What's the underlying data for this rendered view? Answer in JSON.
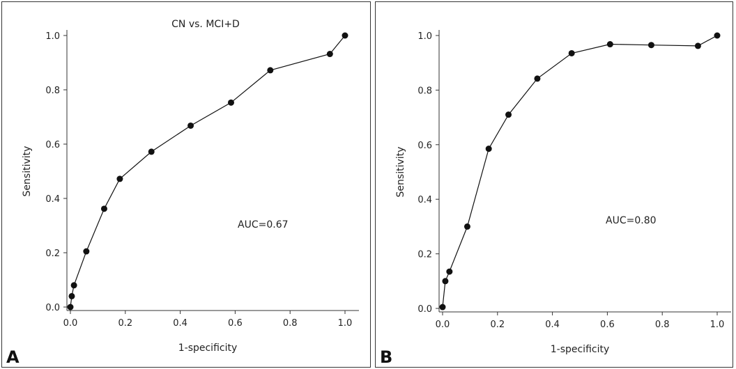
{
  "chart_data": [
    {
      "type": "line",
      "panel_label": "A",
      "title": "CN vs. MCI+D",
      "xlabel": "1-specificity",
      "ylabel": "Sensitivity",
      "annotation": "AUC=0.67",
      "xlim": [
        0,
        1.0
      ],
      "ylim": [
        0,
        1.0
      ],
      "xticks": [
        "0.0",
        "0.2",
        "0.4",
        "0.6",
        "0.8",
        "1.0"
      ],
      "yticks": [
        "0.0",
        "0.2",
        "0.4",
        "0.6",
        "0.8",
        "1.0"
      ],
      "grid": false,
      "series": [
        {
          "x": [
            0.0,
            0.005,
            0.013,
            0.058,
            0.123,
            0.18,
            0.295,
            0.438,
            0.585,
            0.728,
            0.945,
            1.0
          ],
          "y": [
            0.0,
            0.04,
            0.08,
            0.205,
            0.362,
            0.472,
            0.572,
            0.668,
            0.753,
            0.872,
            0.932,
            1.0
          ]
        }
      ]
    },
    {
      "type": "line",
      "panel_label": "B",
      "title": "",
      "xlabel": "1-specificity",
      "ylabel": "Sensitivity",
      "annotation": "AUC=0.80",
      "xlim": [
        0,
        1.0
      ],
      "ylim": [
        0,
        1.0
      ],
      "xticks": [
        "0.0",
        "0.2",
        "0.4",
        "0.6",
        "0.8",
        "1.0"
      ],
      "yticks": [
        "0.0",
        "0.2",
        "0.4",
        "0.6",
        "0.8",
        "1.0"
      ],
      "grid": false,
      "series": [
        {
          "x": [
            0.0,
            0.01,
            0.025,
            0.09,
            0.168,
            0.24,
            0.345,
            0.47,
            0.61,
            0.76,
            0.93,
            1.0
          ],
          "y": [
            0.005,
            0.1,
            0.135,
            0.3,
            0.585,
            0.71,
            0.842,
            0.935,
            0.968,
            0.965,
            0.962,
            1.0
          ]
        }
      ]
    }
  ]
}
